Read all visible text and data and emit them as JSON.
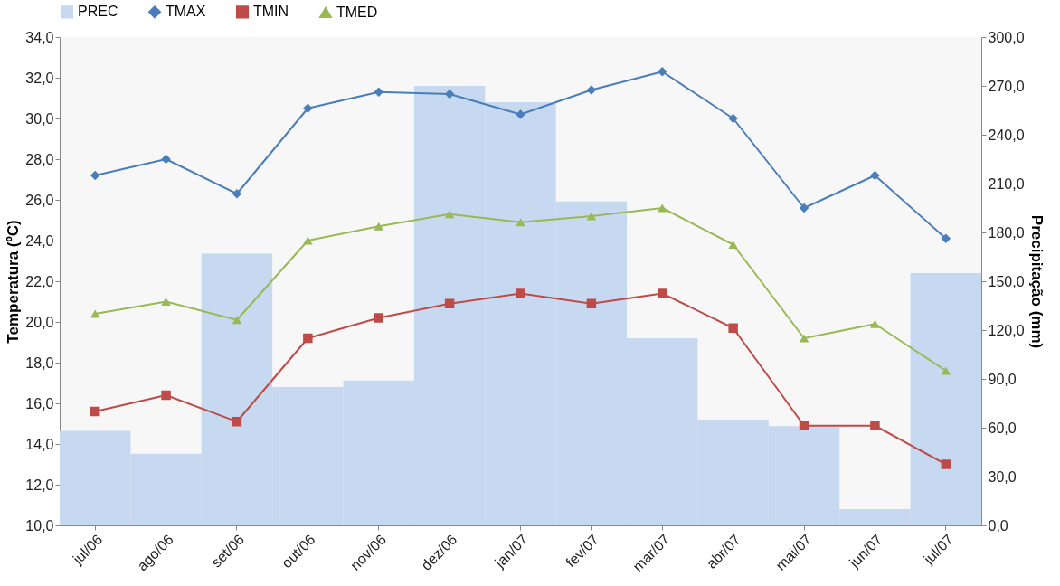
{
  "chart_data": {
    "type": "line",
    "ylabel": "Temperatura (ºC)",
    "y2label": "Precipitação (mm)",
    "categories": [
      "jul/06",
      "ago/06",
      "set/06",
      "out/06",
      "nov/06",
      "dez/06",
      "jan/07",
      "fev/07",
      "mar/07",
      "abr/07",
      "mai/07",
      "jun/07",
      "jul/07"
    ],
    "series": [
      {
        "name": "PREC",
        "type": "bar",
        "axis": "y2",
        "color": "#c6d9f0",
        "values": [
          58,
          44,
          167,
          85,
          89,
          270,
          260,
          199,
          115,
          65,
          61,
          10,
          155
        ]
      },
      {
        "name": "TMAX",
        "marker": "diamond",
        "color": "#4a7ebb",
        "values": [
          27.2,
          28.0,
          26.3,
          30.5,
          31.3,
          31.2,
          30.2,
          31.4,
          32.3,
          30.0,
          25.6,
          27.2,
          24.1
        ]
      },
      {
        "name": "TMIN",
        "marker": "square",
        "color": "#be4b48",
        "values": [
          15.6,
          16.4,
          15.1,
          19.2,
          20.2,
          20.9,
          21.4,
          20.9,
          21.4,
          19.7,
          14.9,
          14.9,
          13.0
        ]
      },
      {
        "name": "TMED",
        "marker": "triangle",
        "color": "#98b954",
        "values": [
          20.4,
          21.0,
          20.1,
          24.0,
          24.7,
          25.3,
          24.9,
          25.2,
          25.6,
          23.8,
          19.2,
          19.9,
          17.6
        ]
      }
    ],
    "ylim": [
      10,
      34
    ],
    "yticks": [
      {
        "value": 10,
        "label": "10,0"
      },
      {
        "value": 12,
        "label": "12,0"
      },
      {
        "value": 14,
        "label": "14,0"
      },
      {
        "value": 16,
        "label": "16,0"
      },
      {
        "value": 18,
        "label": "18,0"
      },
      {
        "value": 20,
        "label": "20,0"
      },
      {
        "value": 22,
        "label": "22,0"
      },
      {
        "value": 24,
        "label": "24,0"
      },
      {
        "value": 26,
        "label": "26,0"
      },
      {
        "value": 28,
        "label": "28,0"
      },
      {
        "value": 30,
        "label": "30,0"
      },
      {
        "value": 32,
        "label": "32,0"
      },
      {
        "value": 34,
        "label": "34,0"
      }
    ],
    "y2lim": [
      0,
      300
    ],
    "y2ticks": [
      {
        "value": 0,
        "label": "0,0"
      },
      {
        "value": 30,
        "label": "30,0"
      },
      {
        "value": 60,
        "label": "60,0"
      },
      {
        "value": 90,
        "label": "90,0"
      },
      {
        "value": 120,
        "label": "120,0"
      },
      {
        "value": 150,
        "label": "150,0"
      },
      {
        "value": 180,
        "label": "180,0"
      },
      {
        "value": 210,
        "label": "210,0"
      },
      {
        "value": 240,
        "label": "240,0"
      },
      {
        "value": 270,
        "label": "270,0"
      },
      {
        "value": 300,
        "label": "300,0"
      }
    ],
    "grid": false,
    "legend": "top",
    "line_style": "solid"
  }
}
